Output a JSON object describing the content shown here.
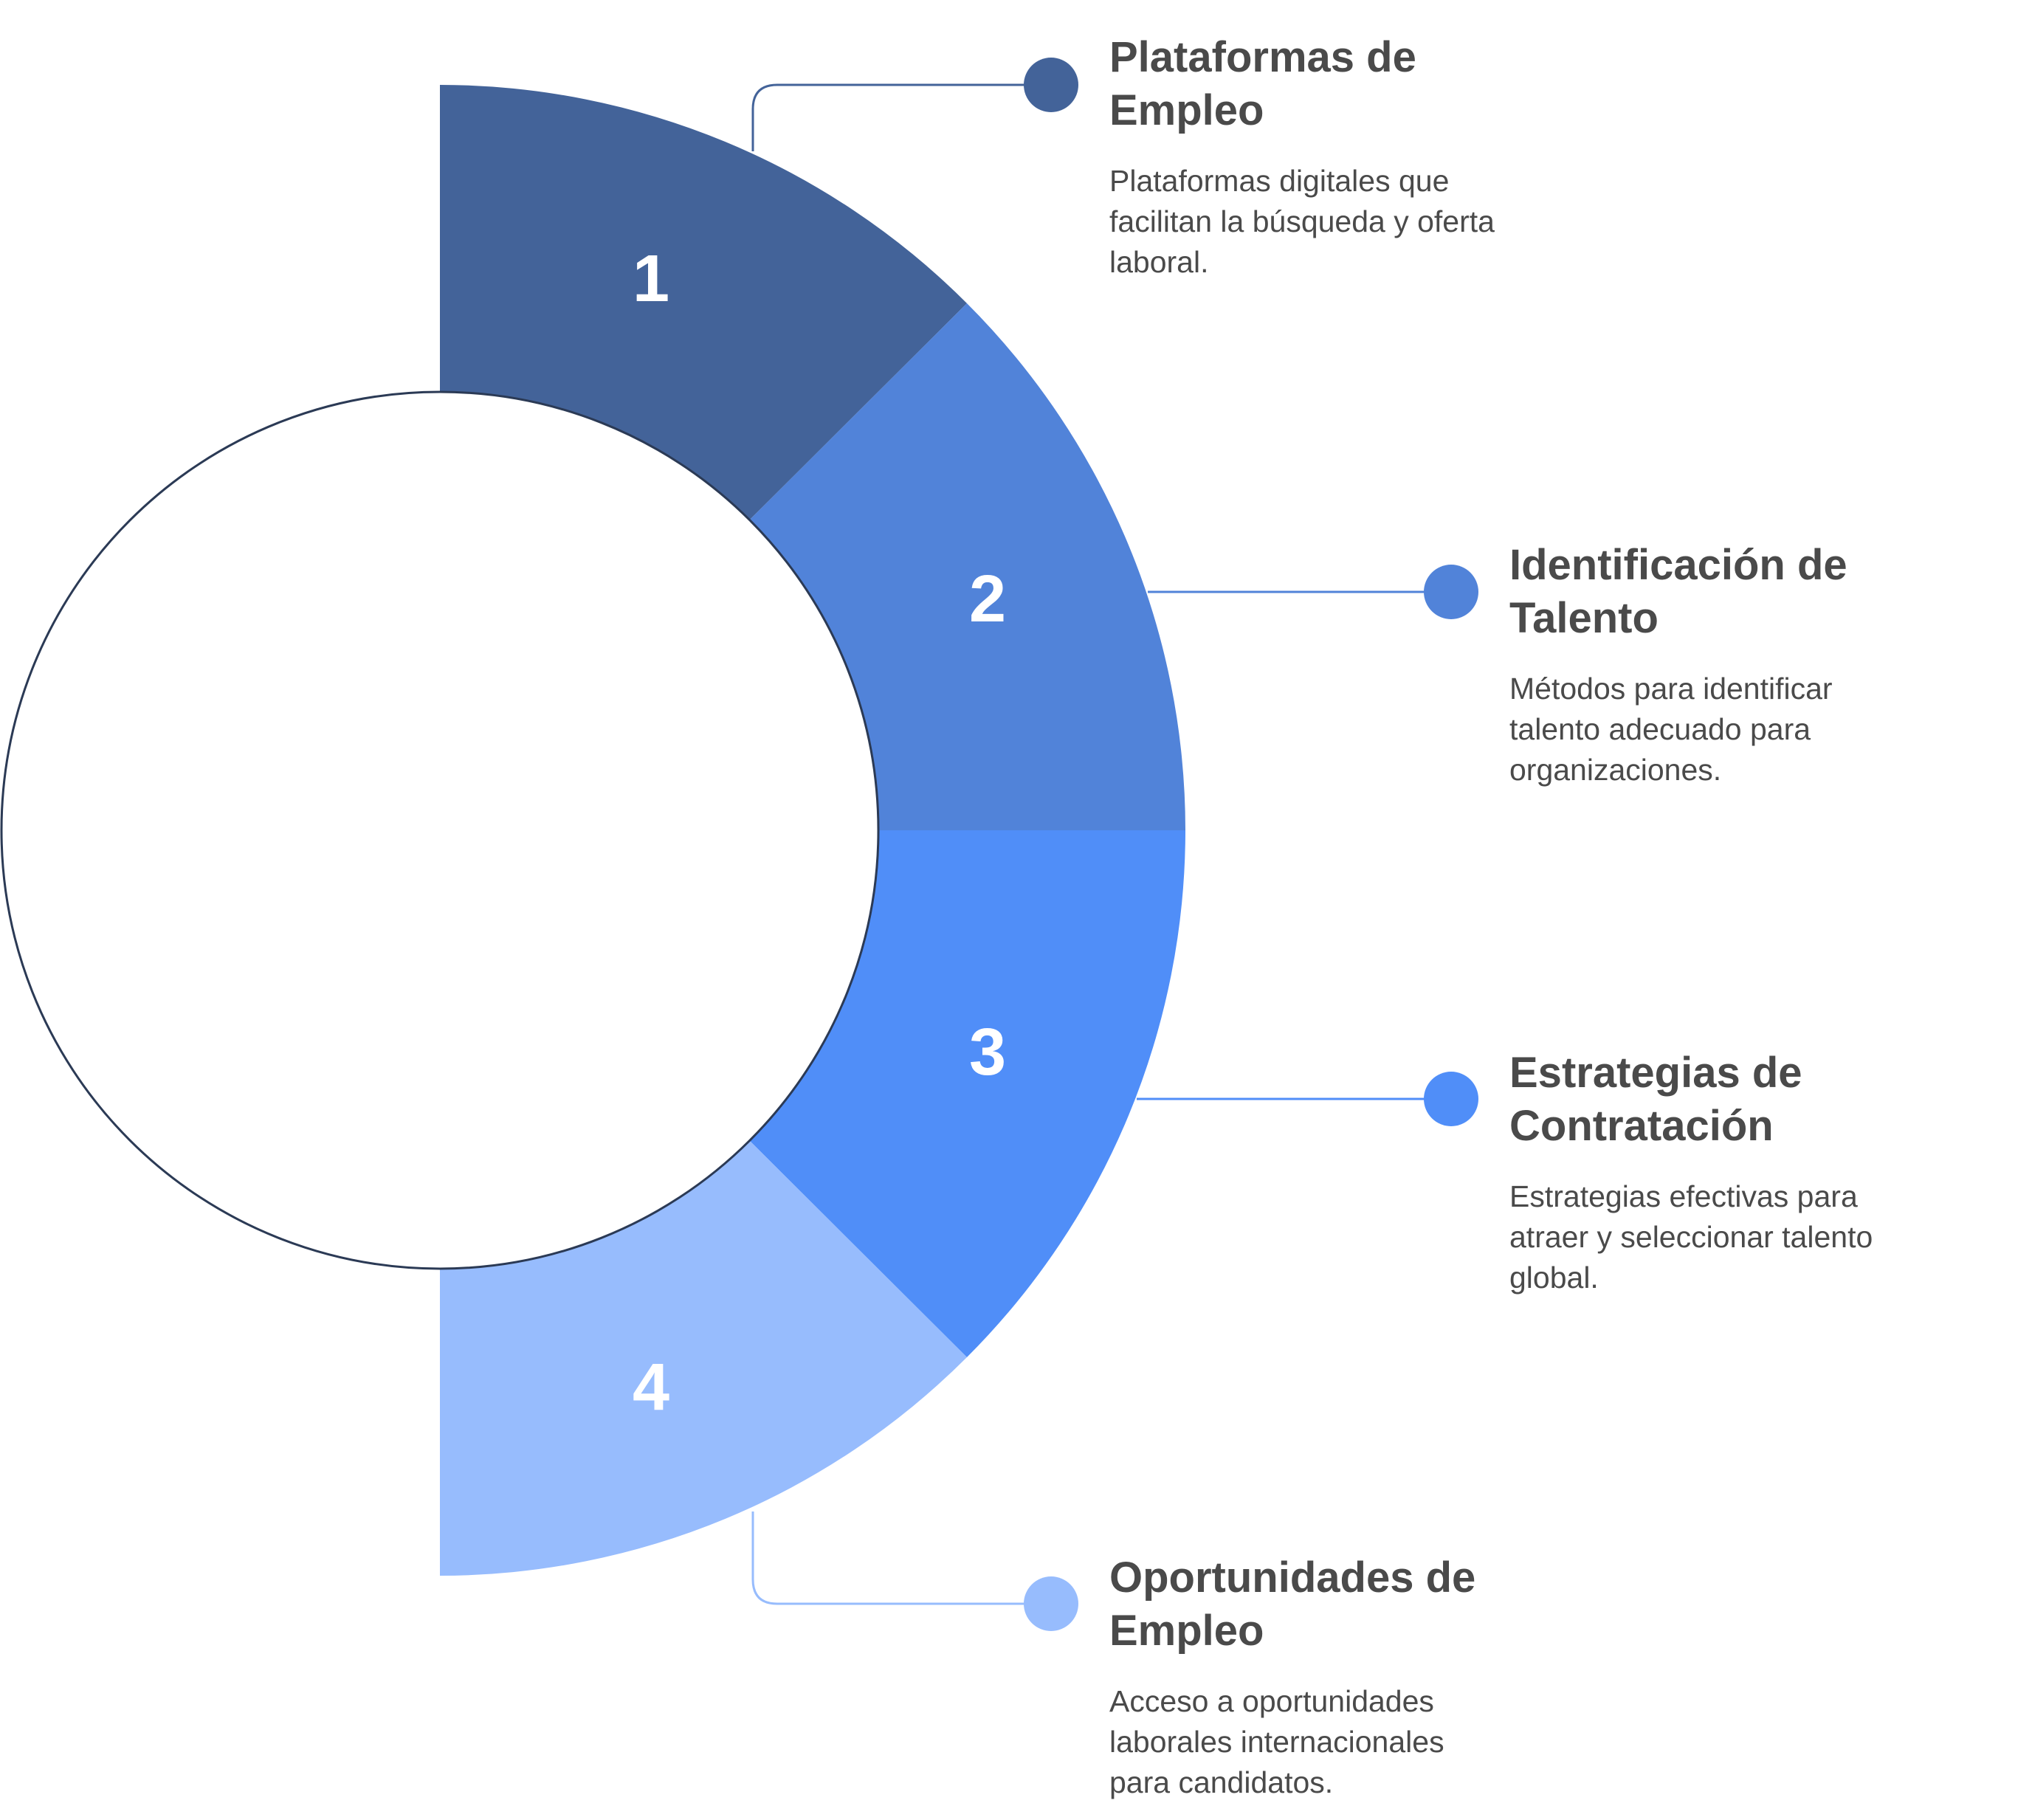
{
  "items": [
    {
      "number": "1",
      "title": "Plataformas de Empleo",
      "description": "Plataformas digitales que facilitan la búsqueda y oferta laboral.",
      "color": "#436399"
    },
    {
      "number": "2",
      "title": "Identificación de Talento",
      "description": "Métodos para identificar talento adecuado para organizaciones.",
      "color": "#5183d9"
    },
    {
      "number": "3",
      "title": "Estrategias de Contratación",
      "description": "Estrategias efectivas para atraer y seleccionar talento global.",
      "color": "#508ef8"
    },
    {
      "number": "4",
      "title": "Oportunidades de Empleo",
      "description": "Acceso a oportunidades laborales internacionales para candidatos.",
      "color": "#97bcfd"
    }
  ],
  "circle_outline_color": "#2b3a55"
}
